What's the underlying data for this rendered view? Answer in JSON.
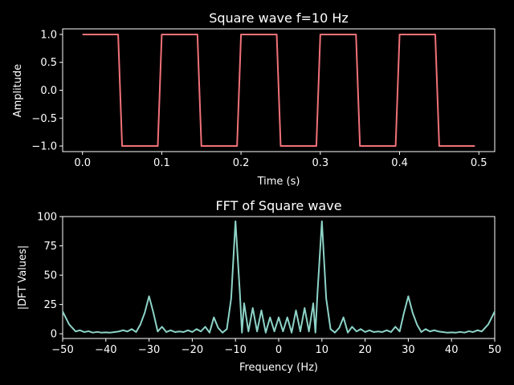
{
  "chart_data": [
    {
      "type": "line",
      "title": "Square wave f=10 Hz",
      "xlabel": "Time (s)",
      "ylabel": "Amplitude",
      "xlim": [
        -0.025,
        0.52
      ],
      "ylim": [
        -1.1,
        1.1
      ],
      "xticks": [
        0.0,
        0.1,
        0.2,
        0.3,
        0.4,
        0.5
      ],
      "xtick_labels": [
        "0.0",
        "0.1",
        "0.2",
        "0.3",
        "0.4",
        "0.5"
      ],
      "yticks": [
        1.0,
        0.5,
        0.0,
        -0.5,
        -1.0
      ],
      "ytick_labels": [
        "1.0",
        "0.5",
        "0.0",
        "−0.5",
        "−1.0"
      ],
      "grid": false,
      "series": [
        {
          "color": "#f07178",
          "x": [
            0.0,
            0.045,
            0.05,
            0.095,
            0.1,
            0.145,
            0.15,
            0.195,
            0.2,
            0.245,
            0.25,
            0.295,
            0.3,
            0.345,
            0.35,
            0.395,
            0.4,
            0.445,
            0.45,
            0.495
          ],
          "y": [
            1,
            1,
            -1,
            -1,
            1,
            1,
            -1,
            -1,
            1,
            1,
            -1,
            -1,
            1,
            1,
            -1,
            -1,
            1,
            1,
            -1,
            -1
          ]
        }
      ]
    },
    {
      "type": "line",
      "title": "FFT of Square wave",
      "xlabel": "Frequency (Hz)",
      "ylabel": "|DFT Values|",
      "xlim": [
        -50,
        50
      ],
      "ylim": [
        -4,
        100
      ],
      "xticks": [
        -50,
        -40,
        -30,
        -20,
        -10,
        0,
        10,
        20,
        30,
        40,
        50
      ],
      "xtick_labels": [
        "−50",
        "−40",
        "−30",
        "−20",
        "−10",
        "0",
        "10",
        "20",
        "30",
        "40",
        "50"
      ],
      "yticks": [
        100,
        75,
        50,
        25,
        0
      ],
      "ytick_labels": [
        "100",
        "75",
        "50",
        "25",
        "0"
      ],
      "grid": false,
      "series": [
        {
          "color": "#8dd3c7",
          "x": [
            -50,
            -48.5,
            -47,
            -46,
            -45,
            -44,
            -43,
            -42,
            -41,
            -40,
            -39,
            -38,
            -37,
            -36,
            -35,
            -34,
            -33,
            -32,
            -31,
            -30,
            -29,
            -28,
            -27,
            -26,
            -25,
            -24,
            -23,
            -22,
            -21,
            -20,
            -19,
            -18,
            -17,
            -16,
            -15,
            -14,
            -13,
            -12,
            -11,
            -10,
            -9,
            -8.5,
            -8,
            -7,
            -6,
            -5,
            -4,
            -3,
            -2,
            -1,
            0,
            1,
            2,
            3,
            4,
            5,
            6,
            7,
            8,
            8.5,
            9,
            10,
            11,
            12,
            13,
            14,
            15,
            16,
            17,
            18,
            19,
            20,
            21,
            22,
            23,
            24,
            25,
            26,
            27,
            28,
            29,
            30,
            31,
            32,
            33,
            34,
            35,
            36,
            37,
            38,
            39,
            40,
            41,
            42,
            43,
            44,
            45,
            46,
            47,
            48.5,
            50
          ],
          "y": [
            19,
            8,
            2,
            3,
            1.5,
            2.2,
            1,
            1.6,
            1,
            1.2,
            1,
            1.5,
            2,
            3,
            2,
            4,
            1.5,
            8,
            18,
            32,
            18,
            2,
            6,
            1.5,
            3,
            1.5,
            2,
            1.5,
            3,
            1.5,
            4,
            2,
            6,
            1,
            14,
            5,
            1,
            4,
            30,
            96,
            36,
            1,
            26,
            2,
            22,
            2,
            20,
            1,
            14,
            2,
            14,
            2,
            14,
            1,
            20,
            2,
            22,
            2,
            26,
            1,
            36,
            96,
            30,
            4,
            1,
            5,
            14,
            1,
            6,
            2,
            4,
            1.5,
            3,
            1.5,
            2,
            1.5,
            3,
            1.5,
            6,
            2,
            18,
            32,
            18,
            8,
            1.5,
            4,
            2,
            3,
            2,
            1.5,
            1,
            1.2,
            1,
            1.6,
            1,
            2.2,
            1.5,
            3,
            2,
            8,
            19
          ]
        }
      ]
    }
  ]
}
